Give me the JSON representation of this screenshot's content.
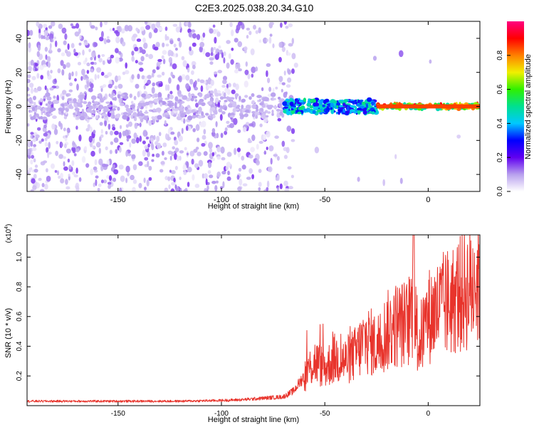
{
  "title": "C2E3.2025.038.20.34.G10",
  "chart_data": [
    {
      "type": "heatmap",
      "xlabel": "Height of straight line (km)",
      "ylabel": "Frequency (Hz)",
      "xlim": [
        -194,
        25
      ],
      "ylim": [
        -50,
        50
      ],
      "x_ticks": [
        "-150",
        "-100",
        "-50",
        "0"
      ],
      "x_tick_values": [
        -150,
        -100,
        -50,
        0
      ],
      "y_ticks": [
        "-40",
        "-20",
        "0",
        "20",
        "40"
      ],
      "y_tick_values": [
        -40,
        -20,
        0,
        20,
        40
      ],
      "colorbar": {
        "label": "Normalized spectral amplitude",
        "range": [
          0,
          1
        ],
        "ticks": [
          "0.0",
          "0.2",
          "0.4",
          "0.6",
          "0.8"
        ],
        "tick_values": [
          0,
          0.2,
          0.4,
          0.6,
          0.8
        ],
        "colors": [
          "#ffffff",
          "#b8a0ee",
          "#6000f0",
          "#0000ff",
          "#00c8ff",
          "#00e090",
          "#30f000",
          "#f0f000",
          "#ff8000",
          "#ff0000",
          "#ff0080"
        ]
      },
      "band": {
        "frequency_hz": 0,
        "segments": [
          {
            "x_range": [
              -194,
              -70
            ],
            "description": "scattered noise",
            "amplitude": 0.1
          },
          {
            "x_range": [
              -70,
              -25
            ],
            "description": "emerging tone",
            "amplitude": 0.5
          },
          {
            "x_range": [
              -25,
              25
            ],
            "description": "strong tone",
            "amplitude": 0.9
          }
        ]
      }
    },
    {
      "type": "line",
      "xlabel": "Height of straight line (km)",
      "ylabel": "SNR (10 * v/v)",
      "y_scale_label": "(x10",
      "y_scale_exponent": "4",
      "xlim": [
        -194,
        25
      ],
      "ylim": [
        0,
        1.15
      ],
      "x_ticks": [
        "-150",
        "-100",
        "-50",
        "0"
      ],
      "x_tick_values": [
        -150,
        -100,
        -50,
        0
      ],
      "y_ticks": [
        "0.2",
        "0.4",
        "0.6",
        "0.8",
        "1.0"
      ],
      "y_tick_values": [
        0.2,
        0.4,
        0.6,
        0.8,
        1.0
      ],
      "series": [
        {
          "color": "#e8342c",
          "x": [
            -194,
            -180,
            -160,
            -140,
            -120,
            -100,
            -90,
            -80,
            -70,
            -65,
            -60,
            -55,
            -50,
            -45,
            -40,
            -35,
            -30,
            -25,
            -20,
            -15,
            -10,
            -7,
            -5,
            0,
            5,
            10,
            15,
            20,
            25
          ],
          "y": [
            0.03,
            0.03,
            0.03,
            0.03,
            0.03,
            0.035,
            0.04,
            0.05,
            0.06,
            0.1,
            0.2,
            0.3,
            0.25,
            0.32,
            0.3,
            0.35,
            0.45,
            0.4,
            0.5,
            0.55,
            0.55,
            0.7,
            0.4,
            0.6,
            0.65,
            0.7,
            0.75,
            0.8,
            0.85
          ]
        }
      ]
    }
  ]
}
